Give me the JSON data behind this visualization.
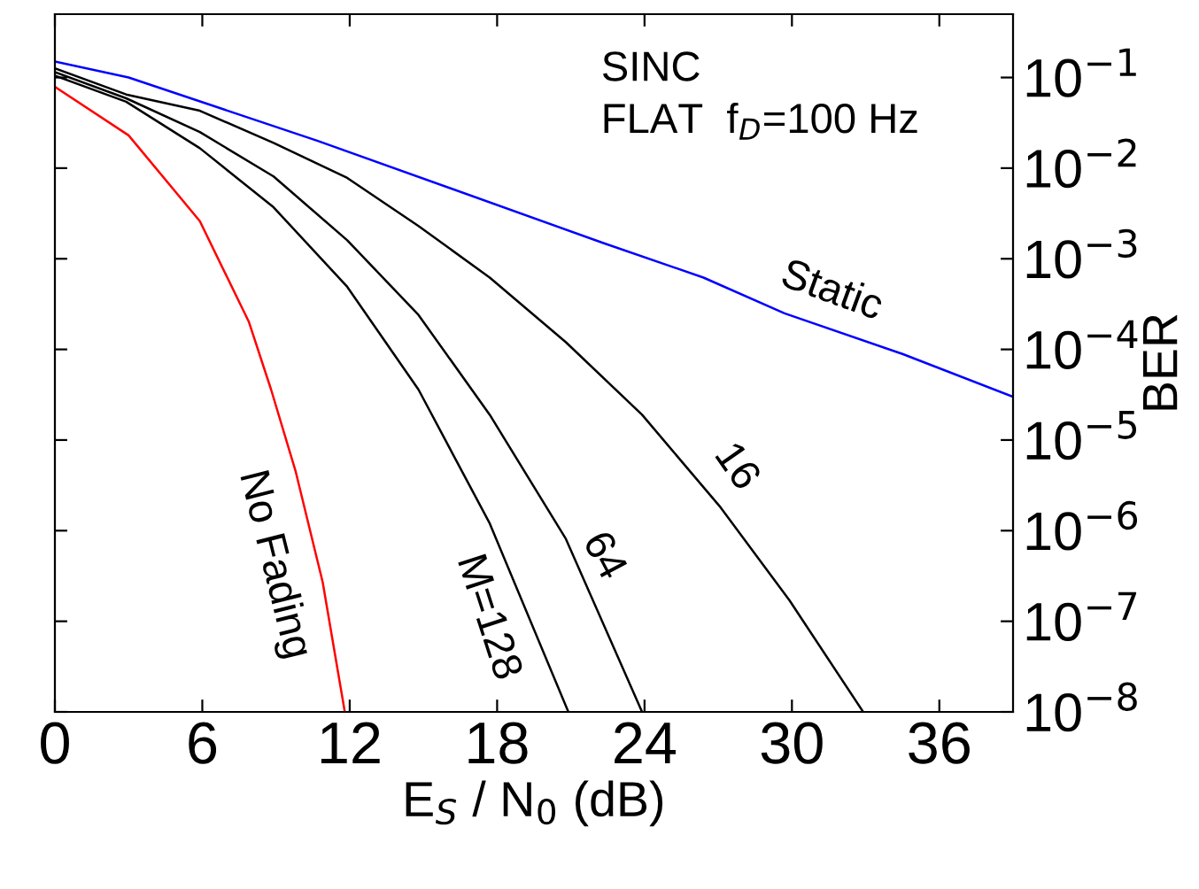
{
  "chart_data": {
    "type": "line",
    "xlabel": "E$_{S}$ / N$_{0}$ (dB)",
    "ylabel": "BER",
    "log": "y",
    "grid": false,
    "marker": "none",
    "line_style": "solid",
    "xlim": [
      0,
      39
    ],
    "xticks": [
      0,
      6,
      12,
      18,
      24,
      30,
      36
    ],
    "ylim": [
      1e-08,
      0.5
    ],
    "yticks": [
      {
        "value": 1e-08,
        "label": "10$^{−8}$"
      },
      {
        "value": 1e-07,
        "label": "10$^{−7}$"
      },
      {
        "value": 1e-06,
        "label": "10$^{−6}$"
      },
      {
        "value": 1e-05,
        "label": "10$^{−5}$"
      },
      {
        "value": 0.0001,
        "label": "10$^{−4}$"
      },
      {
        "value": 0.001,
        "label": "10$^{−3}$"
      },
      {
        "value": 0.01,
        "label": "10$^{−2}$"
      },
      {
        "value": 0.1,
        "label": "10$^{−1}$"
      }
    ],
    "tick_labels": "xy",
    "annotations": [
      "SINC",
      "FLAT  f$_{D}$=100 Hz"
    ],
    "series": [
      {
        "name": "Static",
        "color": "#0000ff",
        "x": [
          0,
          3,
          10.7,
          22.3,
          26.4,
          29.7,
          34.5,
          39
        ],
        "values": [
          0.15,
          0.1,
          0.02,
          0.0015,
          0.00062,
          0.00025,
          8.9e-05,
          3e-05
        ]
      },
      {
        "name": "16",
        "color": "#000000",
        "x": [
          0,
          2.9,
          5.9,
          8.9,
          11.9,
          14.8,
          17.7,
          20.8,
          23.9,
          27.1,
          29.9,
          32.9
        ],
        "values": [
          0.126,
          0.065,
          0.043,
          0.019,
          0.0078,
          0.0023,
          0.00062,
          0.00012,
          1.9e-05,
          1.8e-06,
          1.7e-07,
          1e-08
        ]
      },
      {
        "name": "64",
        "color": "#000000",
        "x": [
          0,
          2.9,
          5.9,
          8.9,
          11.9,
          14.8,
          17.7,
          20.8,
          23.9
        ],
        "values": [
          0.115,
          0.059,
          0.025,
          0.0081,
          0.0016,
          0.00024,
          1.9e-05,
          8.1e-07,
          1e-08
        ]
      },
      {
        "name": "M=128",
        "color": "#000000",
        "x": [
          0,
          2.9,
          5.9,
          8.9,
          11.9,
          14.8,
          17.7,
          20.9
        ],
        "values": [
          0.105,
          0.054,
          0.0166,
          0.0037,
          0.00049,
          3.6e-05,
          1.2e-06,
          1e-08
        ]
      },
      {
        "name": "No Fading",
        "color": "#ff0000",
        "x": [
          0,
          3,
          5.9,
          7.9,
          8.8,
          9.8,
          10.9,
          11.8
        ],
        "values": [
          0.079,
          0.023,
          0.0026,
          0.0002,
          3.6e-05,
          4.5e-06,
          2.7e-07,
          1e-08
        ]
      }
    ]
  }
}
